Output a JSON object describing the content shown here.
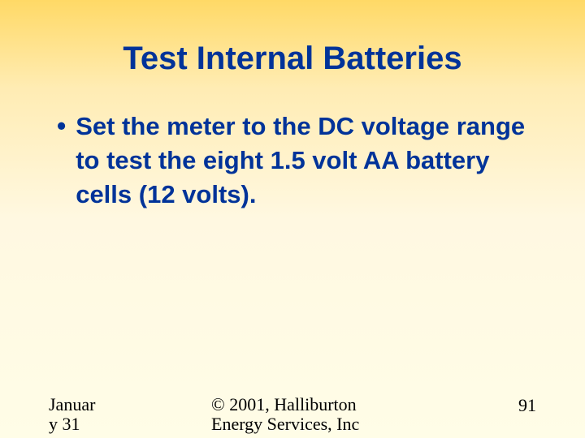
{
  "slide": {
    "title": "Test Internal Batteries",
    "title_color": "#003399",
    "title_fontsize": 40,
    "bullets": [
      {
        "text": "Set the meter to the DC voltage range to test the eight 1.5 volt AA battery cells (12 volts)."
      }
    ],
    "bullet_color": "#003399",
    "bullet_fontsize": 31,
    "background_gradient": {
      "top": "#ffd966",
      "upper_mid": "#ffecb3",
      "mid": "#fff8e1",
      "bottom": "#fffde7"
    }
  },
  "footer": {
    "date_line1": "Januar",
    "date_line2": "y 31",
    "copyright_line1": "© 2001, Halliburton",
    "copyright_line2": "Energy Services, Inc",
    "page_number": "91",
    "footer_color": "#000000",
    "footer_fontsize": 22
  }
}
